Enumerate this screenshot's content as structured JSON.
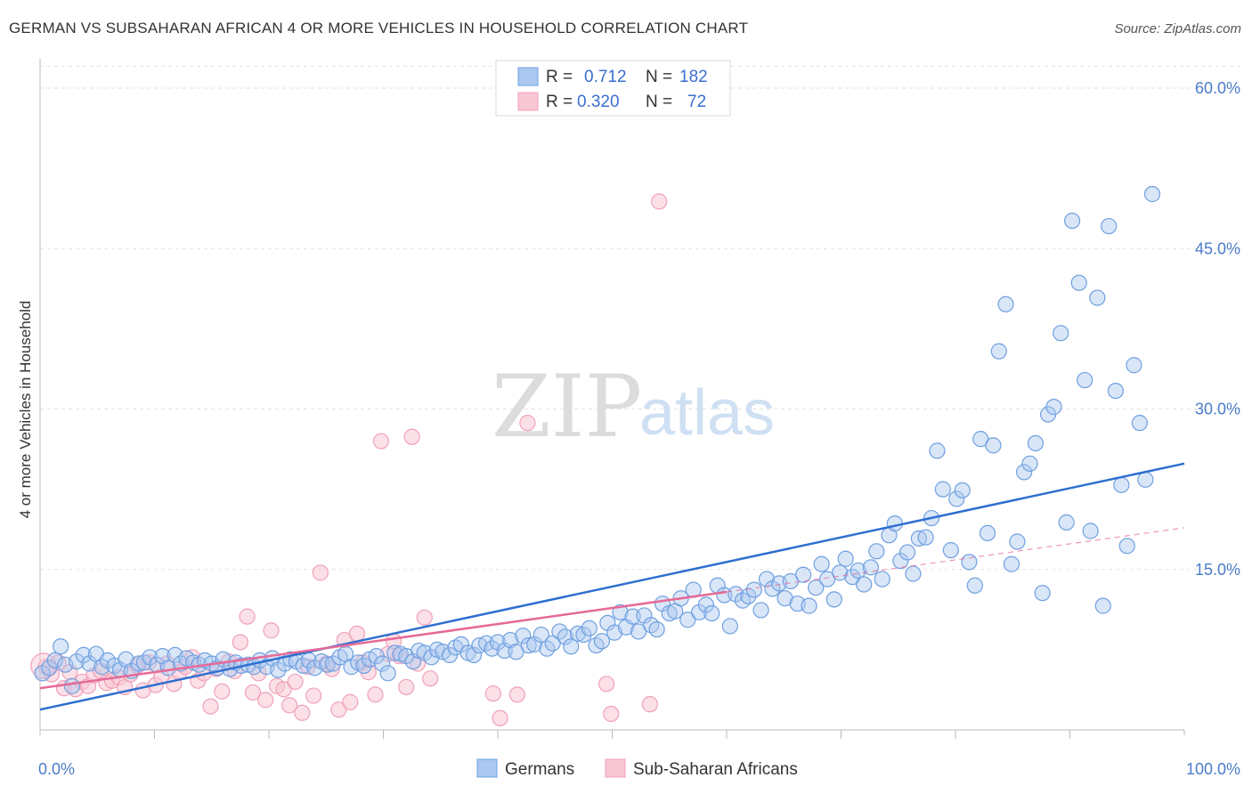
{
  "title": "GERMAN VS SUBSAHARAN AFRICAN 4 OR MORE VEHICLES IN HOUSEHOLD CORRELATION CHART",
  "source": "Source: ZipAtlas.com",
  "watermark": {
    "zip": "ZIP",
    "atlas": "atlas"
  },
  "colors": {
    "blue": "#6fa0e0",
    "blue_fill": "#aac8f0",
    "pink": "#f0a0b8",
    "pink_fill": "#f8c6d4",
    "blue_line": "#2f6fd0",
    "pink_line": "#e56a98"
  },
  "legend": {
    "rows": [
      {
        "r_label": "R =",
        "r_value": "0.712",
        "n_label": "N =",
        "n_value": "182"
      },
      {
        "r_label": "R =",
        "r_value": "0.320",
        "n_label": "N =",
        "n_value": "72"
      }
    ]
  },
  "bottom_legend": [
    "Germans",
    "Sub-Saharan Africans"
  ],
  "chart_data": {
    "type": "scatter",
    "title": "GERMAN VS SUBSAHARAN AFRICAN 4 OR MORE VEHICLES IN HOUSEHOLD CORRELATION CHART",
    "xlabel": "",
    "ylabel": "4 or more Vehicles in Household",
    "xlim": [
      0,
      100
    ],
    "ylim": [
      0,
      62
    ],
    "x_tick_labels": [
      "0.0%",
      "100.0%"
    ],
    "y_ticks": [
      15,
      30,
      45,
      60
    ],
    "y_tick_labels": [
      "15.0%",
      "30.0%",
      "45.0%",
      "60.0%"
    ],
    "grid": true,
    "legend_position": "top-center",
    "series": [
      {
        "name": "Germans",
        "trend": {
          "x": [
            0,
            100
          ],
          "y": [
            1.9,
            24.9
          ]
        },
        "points": [
          [
            0.2,
            5.3
          ],
          [
            0.8,
            5.8
          ],
          [
            1.3,
            6.5
          ],
          [
            1.8,
            7.8
          ],
          [
            2.2,
            6.1
          ],
          [
            2.8,
            4.1
          ],
          [
            3.2,
            6.4
          ],
          [
            3.8,
            7.0
          ],
          [
            4.3,
            6.2
          ],
          [
            4.9,
            7.1
          ],
          [
            5.4,
            5.9
          ],
          [
            5.9,
            6.5
          ],
          [
            6.5,
            6.0
          ],
          [
            7.0,
            5.6
          ],
          [
            7.5,
            6.6
          ],
          [
            8.0,
            5.5
          ],
          [
            8.6,
            6.2
          ],
          [
            9.1,
            6.3
          ],
          [
            9.6,
            6.8
          ],
          [
            10.2,
            6.1
          ],
          [
            10.7,
            6.9
          ],
          [
            11.2,
            5.8
          ],
          [
            11.8,
            7.0
          ],
          [
            12.3,
            6.2
          ],
          [
            12.8,
            6.7
          ],
          [
            13.4,
            6.3
          ],
          [
            13.9,
            6.1
          ],
          [
            14.4,
            6.5
          ],
          [
            15.0,
            6.2
          ],
          [
            15.5,
            5.8
          ],
          [
            16.0,
            6.6
          ],
          [
            16.6,
            5.7
          ],
          [
            17.1,
            6.3
          ],
          [
            17.6,
            6.0
          ],
          [
            18.2,
            6.1
          ],
          [
            18.7,
            5.9
          ],
          [
            19.2,
            6.5
          ],
          [
            19.8,
            5.9
          ],
          [
            20.3,
            6.7
          ],
          [
            20.8,
            5.6
          ],
          [
            21.4,
            6.2
          ],
          [
            21.9,
            6.6
          ],
          [
            22.4,
            6.4
          ],
          [
            23.0,
            6.0
          ],
          [
            23.5,
            6.5
          ],
          [
            24.0,
            5.8
          ],
          [
            24.6,
            6.4
          ],
          [
            25.1,
            6.1
          ],
          [
            25.6,
            6.2
          ],
          [
            26.2,
            6.8
          ],
          [
            26.7,
            7.1
          ],
          [
            27.2,
            5.9
          ],
          [
            27.8,
            6.3
          ],
          [
            28.3,
            6.0
          ],
          [
            28.8,
            6.6
          ],
          [
            29.4,
            6.9
          ],
          [
            29.9,
            6.2
          ],
          [
            30.4,
            5.3
          ],
          [
            31.0,
            7.2
          ],
          [
            31.5,
            7.1
          ],
          [
            32.0,
            6.9
          ],
          [
            32.6,
            6.4
          ],
          [
            33.1,
            7.4
          ],
          [
            33.6,
            7.2
          ],
          [
            34.2,
            6.8
          ],
          [
            34.7,
            7.5
          ],
          [
            35.2,
            7.3
          ],
          [
            35.8,
            7.0
          ],
          [
            36.3,
            7.7
          ],
          [
            36.8,
            8.0
          ],
          [
            37.4,
            7.2
          ],
          [
            37.9,
            7.0
          ],
          [
            38.4,
            7.9
          ],
          [
            39.0,
            8.1
          ],
          [
            39.5,
            7.6
          ],
          [
            40.0,
            8.2
          ],
          [
            40.6,
            7.4
          ],
          [
            41.1,
            8.4
          ],
          [
            41.6,
            7.3
          ],
          [
            42.2,
            8.8
          ],
          [
            42.7,
            7.9
          ],
          [
            43.2,
            8.0
          ],
          [
            43.8,
            8.9
          ],
          [
            44.3,
            7.6
          ],
          [
            44.8,
            8.1
          ],
          [
            45.4,
            9.2
          ],
          [
            45.9,
            8.7
          ],
          [
            46.4,
            7.8
          ],
          [
            47.0,
            9.0
          ],
          [
            47.5,
            8.9
          ],
          [
            48.0,
            9.5
          ],
          [
            48.6,
            7.9
          ],
          [
            49.1,
            8.3
          ],
          [
            49.6,
            10.0
          ],
          [
            50.2,
            9.1
          ],
          [
            50.7,
            11.0
          ],
          [
            51.2,
            9.6
          ],
          [
            51.8,
            10.6
          ],
          [
            52.3,
            9.2
          ],
          [
            52.8,
            10.7
          ],
          [
            53.4,
            9.8
          ],
          [
            53.9,
            9.4
          ],
          [
            54.4,
            11.8
          ],
          [
            55.0,
            10.9
          ],
          [
            55.5,
            11.1
          ],
          [
            56.0,
            12.3
          ],
          [
            56.6,
            10.3
          ],
          [
            57.1,
            13.1
          ],
          [
            57.6,
            11.0
          ],
          [
            58.2,
            11.7
          ],
          [
            58.7,
            10.9
          ],
          [
            59.2,
            13.5
          ],
          [
            59.8,
            12.6
          ],
          [
            60.3,
            9.7
          ],
          [
            60.8,
            12.7
          ],
          [
            61.4,
            12.1
          ],
          [
            61.9,
            12.5
          ],
          [
            62.4,
            13.1
          ],
          [
            63.0,
            11.2
          ],
          [
            63.5,
            14.1
          ],
          [
            64.0,
            13.2
          ],
          [
            64.6,
            13.7
          ],
          [
            65.1,
            12.3
          ],
          [
            65.6,
            13.9
          ],
          [
            66.2,
            11.8
          ],
          [
            66.7,
            14.5
          ],
          [
            67.2,
            11.6
          ],
          [
            67.8,
            13.3
          ],
          [
            68.3,
            15.5
          ],
          [
            68.8,
            14.1
          ],
          [
            69.4,
            12.2
          ],
          [
            69.9,
            14.7
          ],
          [
            70.4,
            16.0
          ],
          [
            71.0,
            14.3
          ],
          [
            71.5,
            14.9
          ],
          [
            72.0,
            13.6
          ],
          [
            72.6,
            15.2
          ],
          [
            73.1,
            16.7
          ],
          [
            73.6,
            14.1
          ],
          [
            74.2,
            18.2
          ],
          [
            74.7,
            19.3
          ],
          [
            75.2,
            15.8
          ],
          [
            75.8,
            16.6
          ],
          [
            76.3,
            14.6
          ],
          [
            76.8,
            17.9
          ],
          [
            77.4,
            18.0
          ],
          [
            77.9,
            19.8
          ],
          [
            78.4,
            26.1
          ],
          [
            78.9,
            22.5
          ],
          [
            79.6,
            16.8
          ],
          [
            80.1,
            21.6
          ],
          [
            80.6,
            22.4
          ],
          [
            81.2,
            15.7
          ],
          [
            81.7,
            13.5
          ],
          [
            82.2,
            27.2
          ],
          [
            82.8,
            18.4
          ],
          [
            83.3,
            26.6
          ],
          [
            83.8,
            35.4
          ],
          [
            84.4,
            39.8
          ],
          [
            84.9,
            15.5
          ],
          [
            85.4,
            17.6
          ],
          [
            86.0,
            24.1
          ],
          [
            86.5,
            24.9
          ],
          [
            87.0,
            26.8
          ],
          [
            87.6,
            12.8
          ],
          [
            88.1,
            29.5
          ],
          [
            88.6,
            30.2
          ],
          [
            89.2,
            37.1
          ],
          [
            89.7,
            19.4
          ],
          [
            90.2,
            47.6
          ],
          [
            90.8,
            41.8
          ],
          [
            91.3,
            32.7
          ],
          [
            91.8,
            18.6
          ],
          [
            92.4,
            40.4
          ],
          [
            92.9,
            11.6
          ],
          [
            93.4,
            47.1
          ],
          [
            94.0,
            31.7
          ],
          [
            94.5,
            22.9
          ],
          [
            95.0,
            17.2
          ],
          [
            95.6,
            34.1
          ],
          [
            96.1,
            28.7
          ],
          [
            96.6,
            23.4
          ],
          [
            97.2,
            50.1
          ]
        ]
      },
      {
        "name": "Sub-Saharan Africans",
        "trend": {
          "x": [
            0,
            60
          ],
          "y": [
            3.9,
            12.9
          ]
        },
        "trend_extension": {
          "x": [
            60,
            100
          ],
          "y": [
            12.9,
            18.9
          ]
        },
        "points": [
          [
            0.5,
            5.9
          ],
          [
            1.0,
            5.2
          ],
          [
            1.6,
            6.3
          ],
          [
            2.1,
            3.9
          ],
          [
            2.6,
            5.4
          ],
          [
            3.1,
            3.8
          ],
          [
            3.7,
            4.5
          ],
          [
            4.2,
            4.1
          ],
          [
            4.7,
            5.1
          ],
          [
            5.3,
            5.5
          ],
          [
            5.8,
            4.4
          ],
          [
            6.3,
            4.6
          ],
          [
            6.9,
            4.9
          ],
          [
            7.4,
            4.0
          ],
          [
            7.9,
            5.2
          ],
          [
            8.5,
            6.0
          ],
          [
            9.0,
            3.7
          ],
          [
            9.5,
            6.3
          ],
          [
            10.1,
            4.2
          ],
          [
            10.6,
            5.0
          ],
          [
            11.1,
            6.2
          ],
          [
            11.7,
            4.3
          ],
          [
            12.2,
            5.4
          ],
          [
            12.7,
            5.9
          ],
          [
            13.3,
            6.8
          ],
          [
            13.8,
            4.6
          ],
          [
            14.3,
            5.3
          ],
          [
            14.9,
            2.2
          ],
          [
            15.4,
            5.7
          ],
          [
            15.9,
            3.6
          ],
          [
            16.5,
            6.4
          ],
          [
            17.0,
            5.5
          ],
          [
            17.5,
            8.2
          ],
          [
            18.1,
            10.6
          ],
          [
            18.6,
            3.5
          ],
          [
            19.1,
            5.3
          ],
          [
            19.7,
            2.8
          ],
          [
            20.2,
            9.3
          ],
          [
            20.7,
            4.1
          ],
          [
            21.3,
            3.8
          ],
          [
            21.8,
            2.3
          ],
          [
            22.3,
            4.5
          ],
          [
            22.9,
            1.6
          ],
          [
            23.4,
            5.9
          ],
          [
            23.9,
            3.2
          ],
          [
            24.5,
            14.7
          ],
          [
            25.0,
            6.2
          ],
          [
            25.5,
            5.7
          ],
          [
            26.1,
            1.9
          ],
          [
            26.6,
            8.4
          ],
          [
            27.1,
            2.6
          ],
          [
            27.7,
            9.0
          ],
          [
            28.2,
            6.3
          ],
          [
            28.7,
            5.4
          ],
          [
            29.3,
            3.3
          ],
          [
            29.8,
            27.0
          ],
          [
            30.4,
            7.1
          ],
          [
            30.9,
            8.3
          ],
          [
            31.4,
            6.9
          ],
          [
            32.0,
            4.0
          ],
          [
            32.5,
            27.4
          ],
          [
            33.0,
            6.2
          ],
          [
            33.6,
            10.5
          ],
          [
            34.1,
            4.8
          ],
          [
            39.6,
            3.4
          ],
          [
            40.2,
            1.1
          ],
          [
            41.7,
            3.3
          ],
          [
            42.6,
            28.7
          ],
          [
            49.5,
            4.3
          ],
          [
            49.9,
            1.5
          ],
          [
            53.3,
            2.4
          ],
          [
            54.1,
            49.4
          ]
        ]
      }
    ]
  }
}
